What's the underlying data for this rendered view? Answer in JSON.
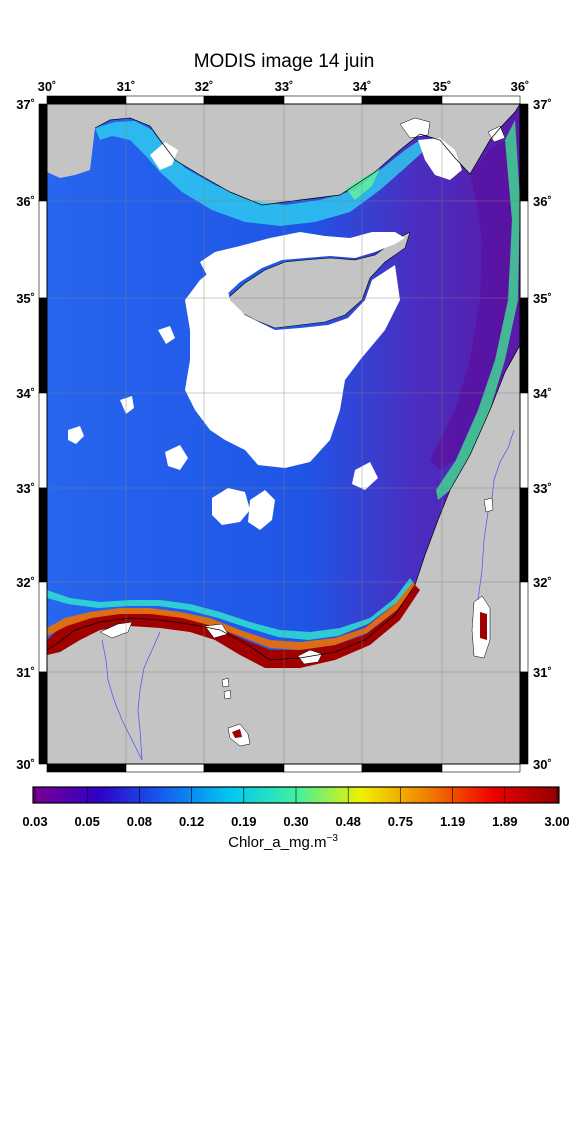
{
  "title": "MODIS image 14 juin",
  "top_ticks": [
    "30˚",
    "31˚",
    "32˚",
    "33˚",
    "34˚",
    "35˚",
    "36˚"
  ],
  "left_ticks": [
    "37˚",
    "36˚",
    "35˚",
    "34˚",
    "33˚",
    "32˚",
    "31˚",
    "30˚"
  ],
  "colorbar": {
    "ticks": [
      "0.03",
      "0.05",
      "0.08",
      "0.12",
      "0.19",
      "0.30",
      "0.48",
      "0.75",
      "1.19",
      "1.89",
      "3.00"
    ],
    "label_main": "Chlor_a_mg.m",
    "label_sup": "−3",
    "colors": [
      "#7a0090",
      "#3000c8",
      "#1460f0",
      "#00c8f0",
      "#40f0a0",
      "#f0f000",
      "#f08000",
      "#f00000",
      "#900000"
    ]
  },
  "colors": {
    "land": "#c4c4c4",
    "cloud": "#ffffff",
    "sea_deep": "#1a4fe0",
    "sea_mid": "#2a78ff",
    "sea_purple": "#6a1aa8",
    "coast_bloom": "#a00000"
  }
}
